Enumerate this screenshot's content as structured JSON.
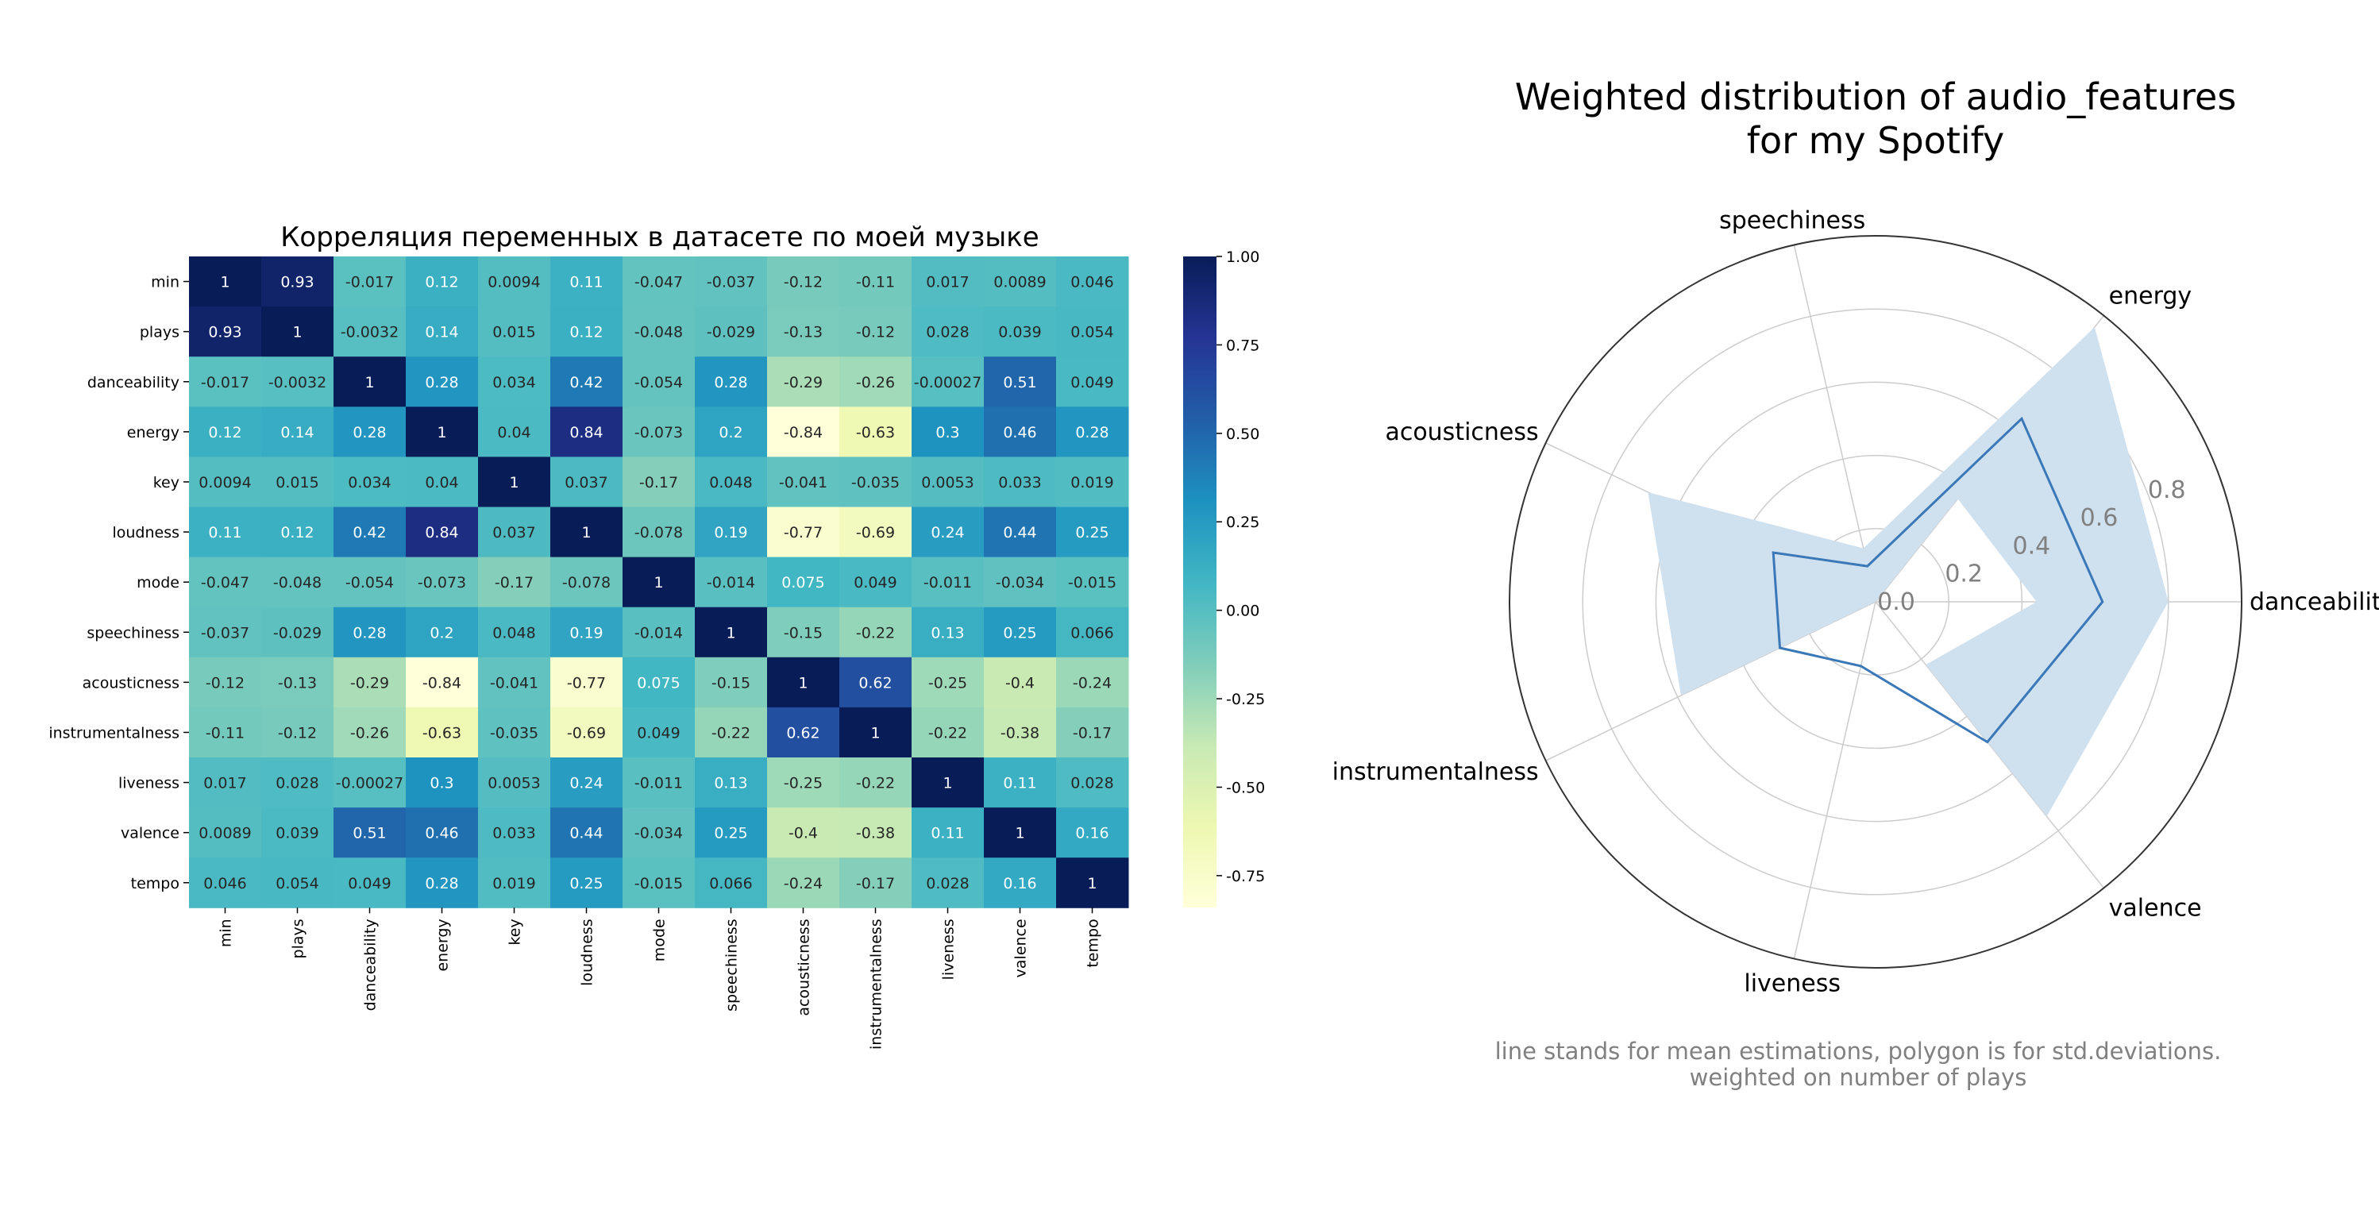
{
  "chart_data": [
    {
      "type": "heatmap",
      "title": "Корреляция переменных в датасете по моей музыке",
      "rows": [
        "min",
        "plays",
        "danceability",
        "energy",
        "key",
        "loudness",
        "mode",
        "speechiness",
        "acousticness",
        "instrumentalness",
        "liveness",
        "valence",
        "tempo"
      ],
      "columns": [
        "min",
        "plays",
        "danceability",
        "energy",
        "key",
        "loudness",
        "mode",
        "speechiness",
        "acousticness",
        "instrumentalness",
        "liveness",
        "valence",
        "tempo"
      ],
      "labels": [
        [
          "1",
          "0.93",
          "-0.017",
          "0.12",
          "0.0094",
          "0.11",
          "-0.047",
          "-0.037",
          "-0.12",
          "-0.11",
          "0.017",
          "0.0089",
          "0.046"
        ],
        [
          "0.93",
          "1",
          "-0.0032",
          "0.14",
          "0.015",
          "0.12",
          "-0.048",
          "-0.029",
          "-0.13",
          "-0.12",
          "0.028",
          "0.039",
          "0.054"
        ],
        [
          "-0.017",
          "-0.0032",
          "1",
          "0.28",
          "0.034",
          "0.42",
          "-0.054",
          "0.28",
          "-0.29",
          "-0.26",
          "-0.00027",
          "0.51",
          "0.049"
        ],
        [
          "0.12",
          "0.14",
          "0.28",
          "1",
          "0.04",
          "0.84",
          "-0.073",
          "0.2",
          "-0.84",
          "-0.63",
          "0.3",
          "0.46",
          "0.28"
        ],
        [
          "0.0094",
          "0.015",
          "0.034",
          "0.04",
          "1",
          "0.037",
          "-0.17",
          "0.048",
          "-0.041",
          "-0.035",
          "0.0053",
          "0.033",
          "0.019"
        ],
        [
          "0.11",
          "0.12",
          "0.42",
          "0.84",
          "0.037",
          "1",
          "-0.078",
          "0.19",
          "-0.77",
          "-0.69",
          "0.24",
          "0.44",
          "0.25"
        ],
        [
          "-0.047",
          "-0.048",
          "-0.054",
          "-0.073",
          "-0.17",
          "-0.078",
          "1",
          "-0.014",
          "0.075",
          "0.049",
          "-0.011",
          "-0.034",
          "-0.015"
        ],
        [
          "-0.037",
          "-0.029",
          "0.28",
          "0.2",
          "0.048",
          "0.19",
          "-0.014",
          "1",
          "-0.15",
          "-0.22",
          "0.13",
          "0.25",
          "0.066"
        ],
        [
          "-0.12",
          "-0.13",
          "-0.29",
          "-0.84",
          "-0.041",
          "-0.77",
          "0.075",
          "-0.15",
          "1",
          "0.62",
          "-0.25",
          "-0.4",
          "-0.24"
        ],
        [
          "-0.11",
          "-0.12",
          "-0.26",
          "-0.63",
          "-0.035",
          "-0.69",
          "0.049",
          "-0.22",
          "0.62",
          "1",
          "-0.22",
          "-0.38",
          "-0.17"
        ],
        [
          "0.017",
          "0.028",
          "-0.00027",
          "0.3",
          "0.0053",
          "0.24",
          "-0.011",
          "0.13",
          "-0.25",
          "-0.22",
          "1",
          "0.11",
          "0.028"
        ],
        [
          "0.0089",
          "0.039",
          "0.51",
          "0.46",
          "0.033",
          "0.44",
          "-0.034",
          "0.25",
          "-0.4",
          "-0.38",
          "0.11",
          "1",
          "0.16"
        ],
        [
          "0.046",
          "0.054",
          "0.049",
          "0.28",
          "0.019",
          "0.25",
          "-0.015",
          "0.066",
          "-0.24",
          "-0.17",
          "0.028",
          "0.16",
          "1"
        ]
      ],
      "colorbar": {
        "ticks": [
          "1.00",
          "0.75",
          "0.50",
          "0.25",
          "0.00",
          "-0.25",
          "-0.50",
          "-0.75"
        ],
        "range": [
          -0.84,
          1.0
        ],
        "colormap": "YlGnBu"
      }
    },
    {
      "type": "radar",
      "title_line1": "Weighted distribution of audio_features",
      "title_line2": "for my Spotify",
      "categories": [
        "danceability",
        "energy",
        "speechiness",
        "acousticness",
        "instrumentalness",
        "liveness",
        "valence"
      ],
      "mean": [
        0.62,
        0.64,
        0.1,
        0.31,
        0.29,
        0.18,
        0.49
      ],
      "upper": [
        0.8,
        0.96,
        0.15,
        0.69,
        0.59,
        0.0,
        0.75
      ],
      "lower": [
        0.44,
        0.36,
        0.0,
        0.0,
        0.0,
        0.0,
        0.22
      ],
      "r_ticks": [
        "0.0",
        "0.2",
        "0.4",
        "0.6",
        "0.8"
      ],
      "r_range": [
        0,
        1.0
      ],
      "line_color": "#3a78b8",
      "fill_color": "#cfe0ef",
      "note_line1": "line stands for mean estimations, polygon is for std.deviations.",
      "note_line2": "weighted on number of plays"
    }
  ]
}
